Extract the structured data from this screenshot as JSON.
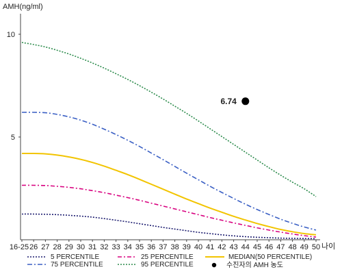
{
  "chart_data": {
    "type": "line",
    "ylabel": "AMH(ng/ml)",
    "xlabel": "나이",
    "x": [
      "16-25",
      "26",
      "27",
      "28",
      "29",
      "30",
      "31",
      "32",
      "33",
      "34",
      "35",
      "36",
      "37",
      "38",
      "39",
      "40",
      "41",
      "42",
      "43",
      "44",
      "45",
      "46",
      "47",
      "48",
      "49",
      "50"
    ],
    "yticks": [
      "5",
      "10"
    ],
    "ylim": [
      0,
      11
    ],
    "grid": false,
    "legend_position": "bottom",
    "series": [
      {
        "name": "5 PERCENTILE",
        "color": "#1a1a6e",
        "dash": "2,2",
        "values": [
          1.25,
          1.25,
          1.24,
          1.22,
          1.19,
          1.15,
          1.1,
          1.03,
          0.95,
          0.87,
          0.78,
          0.69,
          0.6,
          0.52,
          0.44,
          0.36,
          0.3,
          0.24,
          0.19,
          0.15,
          0.12,
          0.1,
          0.08,
          0.07,
          0.06,
          0.05
        ]
      },
      {
        "name": "25 PERCENTILE",
        "color": "#d8007f",
        "dash": "6,3,2,3",
        "values": [
          2.65,
          2.65,
          2.64,
          2.6,
          2.55,
          2.48,
          2.39,
          2.29,
          2.17,
          2.05,
          1.92,
          1.78,
          1.64,
          1.5,
          1.36,
          1.22,
          1.08,
          0.95,
          0.82,
          0.7,
          0.58,
          0.47,
          0.37,
          0.28,
          0.2,
          0.13
        ]
      },
      {
        "name": "MEDIAN(50 PERCENTILE)",
        "color": "#f2c400",
        "dash": "",
        "values": [
          4.2,
          4.2,
          4.18,
          4.12,
          4.03,
          3.91,
          3.76,
          3.58,
          3.38,
          3.17,
          2.94,
          2.7,
          2.46,
          2.22,
          1.98,
          1.76,
          1.54,
          1.34,
          1.14,
          0.96,
          0.79,
          0.64,
          0.5,
          0.39,
          0.3,
          0.24
        ]
      },
      {
        "name": "75 PERCENTILE",
        "color": "#3a5fc4",
        "dash": "7,3,2,3",
        "values": [
          6.2,
          6.2,
          6.18,
          6.1,
          5.98,
          5.82,
          5.62,
          5.38,
          5.12,
          4.84,
          4.54,
          4.22,
          3.9,
          3.57,
          3.24,
          2.92,
          2.6,
          2.3,
          2.01,
          1.73,
          1.47,
          1.23,
          1.0,
          0.8,
          0.62,
          0.47
        ]
      },
      {
        "name": "95 PERCENTILE",
        "color": "#2a8a4a",
        "dash": "2,2",
        "values": [
          9.6,
          9.5,
          9.38,
          9.22,
          9.04,
          8.83,
          8.6,
          8.35,
          8.08,
          7.8,
          7.5,
          7.18,
          6.85,
          6.5,
          6.15,
          5.78,
          5.4,
          5.02,
          4.64,
          4.26,
          3.88,
          3.5,
          3.14,
          2.8,
          2.48,
          2.1
        ]
      }
    ],
    "patient_marker": {
      "name": "수진자의 AMH 농도",
      "label": "6.74",
      "x": "44",
      "value": 6.74,
      "color": "#000000"
    }
  }
}
